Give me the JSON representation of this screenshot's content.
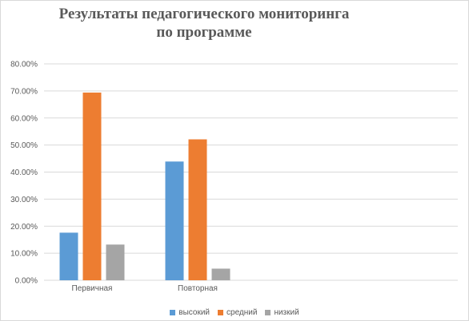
{
  "chart_data": {
    "type": "bar",
    "title": "Результаты педагогического мониторинга по программе",
    "categories": [
      "Первичная",
      "Повторная"
    ],
    "series": [
      {
        "name": "высокий",
        "color": "#5b9bd5",
        "values": [
          17.6,
          43.9
        ]
      },
      {
        "name": "средний",
        "color": "#ed7d31",
        "values": [
          69.4,
          52.1
        ]
      },
      {
        "name": "низкий",
        "color": "#a5a5a5",
        "values": [
          13.2,
          4.3
        ]
      }
    ],
    "yticks": [
      "0.00%",
      "10.00%",
      "20.00%",
      "30.00%",
      "40.00%",
      "50.00%",
      "60.00%",
      "70.00%",
      "80.00%"
    ],
    "ylim": [
      0,
      80
    ],
    "grid": true,
    "legend_position": "bottom"
  }
}
